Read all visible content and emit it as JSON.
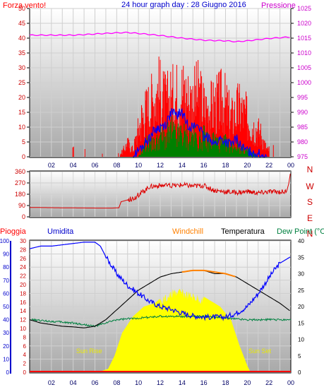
{
  "header": {
    "left_title": "Forza vento!",
    "center_title": "24 hour graph day : 28 Giugno 2016",
    "right_title": "Pressione"
  },
  "colors": {
    "wind": "#ff0000",
    "gust_fill": "#ff0000",
    "avg_wind": "#008000",
    "dir_line": "#0000ff",
    "pressure": "#ff00ff",
    "direction": "#dd0000",
    "rain": "#ff0000",
    "humidity": "#0000ff",
    "windchill": "#ff8000",
    "temperature": "#000000",
    "dewpoint": "#008040",
    "solar": "#ffff00"
  },
  "chart_data": [
    {
      "type": "line",
      "title": "Forza vento!",
      "right_label": "Pressione",
      "yticks_left": [
        "0",
        "5",
        "10",
        "15",
        "20",
        "25",
        "30",
        "35",
        "40",
        "45",
        "50"
      ],
      "yticks_right": [
        "975",
        "980",
        "985",
        "990",
        "995",
        "1000",
        "1005",
        "1010",
        "1015",
        "1020",
        "1025"
      ],
      "ylim_left": [
        0,
        50
      ],
      "ylim_right": [
        975,
        1025
      ],
      "xticks": [
        "02",
        "04",
        "06",
        "08",
        "10",
        "12",
        "14",
        "16",
        "18",
        "20",
        "22",
        "00"
      ],
      "series": [
        {
          "name": "Pressione",
          "x_hours": [
            0,
            2,
            4,
            6,
            8,
            9,
            10,
            12,
            14,
            16,
            18,
            19,
            20,
            22,
            24
          ],
          "values": [
            1016,
            1016,
            1016,
            1016.4,
            1016.8,
            1016.9,
            1016.6,
            1015.9,
            1015,
            1014.3,
            1014.1,
            1013.8,
            1014.1,
            1014.9,
            1015.4
          ]
        },
        {
          "name": "gust_peaks",
          "x_hours": [
            0.8,
            1.5,
            2.0,
            4.8,
            7.5,
            8.5,
            9.0,
            9.5,
            10.3,
            11.0,
            11.8,
            12.5,
            13.2,
            14.0,
            14.8,
            15.5,
            16.2,
            17.0,
            17.8,
            18.5,
            19.2,
            19.8,
            20.5,
            21.2,
            21.8,
            23.8
          ],
          "values": [
            0,
            3,
            5,
            5,
            0,
            2,
            6,
            3,
            18,
            23,
            30,
            24,
            27,
            30,
            25,
            28,
            21,
            23,
            26,
            17,
            22,
            19,
            14,
            11,
            3,
            7
          ]
        },
        {
          "name": "avg_wind_peaks",
          "x_hours": [
            10.0,
            10.5,
            11.0,
            11.5,
            12.0,
            12.5,
            13.0,
            13.5,
            14.0,
            14.5,
            15.0,
            15.5,
            16.0,
            16.5,
            17.0,
            17.5,
            18.0,
            18.5,
            19.0,
            19.5,
            20.0,
            20.5,
            21.0
          ],
          "values": [
            0,
            5,
            8,
            6,
            10,
            9,
            13,
            10,
            12,
            9,
            11,
            8,
            10,
            7,
            9,
            6,
            7,
            5,
            6,
            4,
            3,
            2,
            0
          ]
        },
        {
          "name": "dir_line",
          "x_hours": [
            9.5,
            10.5,
            11.5,
            12.5,
            13.0,
            13.5,
            14.0,
            14.5,
            15.0,
            15.5,
            16.0,
            16.5,
            17.0,
            17.5,
            18.0,
            18.5,
            19.0,
            19.5,
            20.0,
            21.0,
            21.8
          ],
          "values": [
            0,
            4,
            9,
            11,
            15,
            14,
            15,
            11,
            10,
            11,
            6,
            7,
            4,
            6,
            5,
            4,
            6,
            3,
            2,
            1,
            0
          ]
        }
      ]
    },
    {
      "type": "line",
      "title": "Wind direction",
      "yticks_left": [
        "0",
        "90",
        "180",
        "270",
        "360"
      ],
      "ylim": [
        0,
        360
      ],
      "right_letters": [
        "N",
        "W",
        "S",
        "E",
        "N"
      ],
      "series": [
        {
          "name": "direction",
          "x_hours": [
            0,
            3,
            6,
            7.6,
            8.2,
            8.4,
            9.0,
            9.6,
            10.4,
            11,
            12,
            13,
            14,
            15,
            16,
            17,
            18,
            19,
            20,
            21,
            22,
            23.6,
            23.8,
            24
          ],
          "values": [
            75,
            72,
            70,
            70,
            72,
            120,
            135,
            150,
            200,
            240,
            250,
            245,
            255,
            245,
            250,
            210,
            200,
            195,
            200,
            190,
            200,
            200,
            260,
            370
          ]
        }
      ]
    },
    {
      "type": "line",
      "labels": {
        "rain": "Pioggia",
        "humidity": "Umidita",
        "windchill": "Windchill",
        "temperature": "Temperatura",
        "dewpoint": "Dew Point (°C",
        "sunrise": "Sun Rise",
        "sunset": "Sun Set"
      },
      "yticks_left_humidity": [
        "0",
        "10",
        "20",
        "30",
        "40",
        "50",
        "60",
        "70",
        "80",
        "90",
        "100"
      ],
      "yticks_left_rain": [
        "0",
        "2",
        "4",
        "6",
        "8",
        "10",
        "12",
        "14",
        "16",
        "18",
        "20",
        "22",
        "24",
        "26",
        "28",
        "30"
      ],
      "yticks_right_temp": [
        "0",
        "5",
        "10",
        "15",
        "20",
        "25",
        "30",
        "35",
        "40"
      ],
      "ylim_humidity": [
        0,
        100
      ],
      "ylim_temp": [
        0,
        40
      ],
      "xticks": [
        "02",
        "04",
        "06",
        "08",
        "10",
        "12",
        "14",
        "16",
        "18",
        "20",
        "22",
        "00"
      ],
      "series": [
        {
          "name": "Umidita",
          "x_hours": [
            0,
            1,
            2,
            3,
            4,
            5,
            6,
            6.5,
            7,
            8,
            9,
            10,
            11,
            12,
            13,
            14,
            15,
            16,
            17,
            18,
            19,
            20,
            21,
            22,
            22.5,
            23,
            24
          ],
          "values": [
            94,
            96,
            96,
            97,
            98,
            99,
            99,
            96,
            88,
            75,
            66,
            60,
            54,
            50,
            48,
            45,
            43,
            42,
            42,
            42,
            45,
            50,
            60,
            72,
            78,
            83,
            88
          ]
        },
        {
          "name": "Temperatura",
          "x_hours": [
            0,
            1,
            2,
            3,
            4,
            5,
            6,
            7,
            8,
            9,
            10,
            11,
            12,
            13,
            14,
            15,
            16,
            17,
            18,
            19,
            20,
            21,
            22,
            23,
            24
          ],
          "values": [
            16,
            15,
            14.5,
            14,
            13.8,
            13.5,
            14,
            16,
            19,
            22,
            25,
            27,
            29,
            30,
            30.5,
            31,
            31,
            30,
            30,
            29,
            27,
            25,
            23,
            21,
            18.5
          ]
        },
        {
          "name": "Windchill",
          "x_hours": [
            14,
            15,
            16,
            17,
            18,
            19
          ],
          "values": [
            30.5,
            31,
            31,
            30.5,
            30,
            29
          ]
        },
        {
          "name": "Dew Point",
          "x_hours": [
            0,
            2,
            4,
            6,
            7,
            8,
            10,
            12,
            14,
            16,
            18,
            20,
            22,
            24
          ],
          "values": [
            16,
            15.5,
            15,
            14,
            15,
            16,
            16.5,
            17,
            17,
            17,
            16.5,
            16,
            16,
            16
          ]
        },
        {
          "name": "Solar",
          "x_hours": [
            5.8,
            6.5,
            7.2,
            7.8,
            8.5,
            9.5,
            10.5,
            11.5,
            12.5,
            13.5,
            14.5,
            15.5,
            16.5,
            17.5,
            18.5,
            19.3,
            20.0,
            20.3
          ],
          "values": [
            0,
            0.3,
            1,
            5,
            12,
            17,
            20,
            21,
            24,
            26,
            25,
            24,
            22,
            20,
            16,
            8,
            2,
            0
          ]
        },
        {
          "name": "Pioggia",
          "x_hours": [
            0,
            24
          ],
          "values": [
            0,
            0
          ]
        }
      ]
    }
  ]
}
